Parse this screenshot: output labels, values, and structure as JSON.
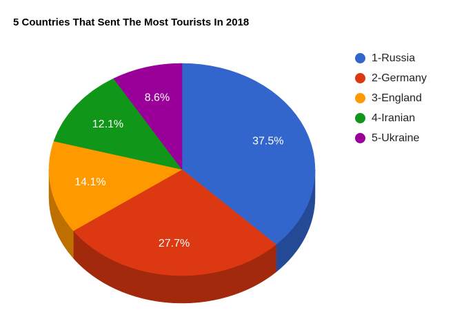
{
  "chart_data": {
    "type": "pie",
    "title": "5 Countries That Sent The Most Tourists In 2018",
    "legend_position": "right",
    "three_d": true,
    "slices": [
      {
        "label": "1-Russia",
        "value": 37.5,
        "value_label": "37.5%",
        "color": "#3366cc",
        "side_color": "#244a96"
      },
      {
        "label": "2-Germany",
        "value": 27.7,
        "value_label": "27.7%",
        "color": "#dc3912",
        "side_color": "#a3290d"
      },
      {
        "label": "3-England",
        "value": 14.1,
        "value_label": "14.1%",
        "color": "#ff9900",
        "side_color": "#bd7000"
      },
      {
        "label": "4-Iranian",
        "value": 12.1,
        "value_label": "12.1%",
        "color": "#109618",
        "side_color": "#0b6e11"
      },
      {
        "label": "5-Ukraine",
        "value": 8.6,
        "value_label": "8.6%",
        "color": "#990099",
        "side_color": "#700070"
      }
    ]
  }
}
